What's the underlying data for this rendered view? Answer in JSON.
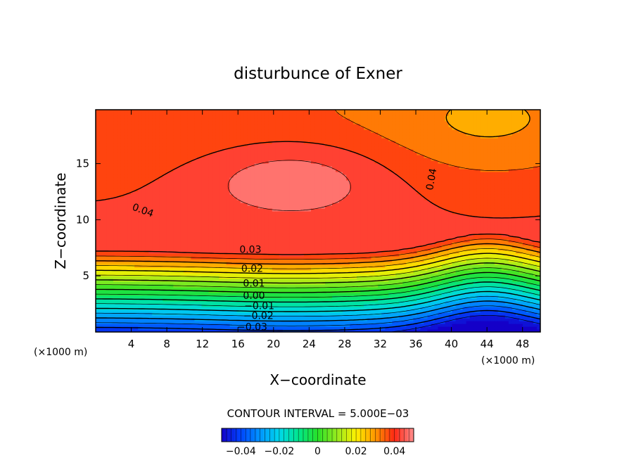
{
  "chart_data": {
    "type": "contour",
    "title": "disturbunce of Exner",
    "xlabel": "X−coordinate",
    "ylabel": "Z−coordinate",
    "x_unit_left": "(×1000 m)",
    "x_unit_right": "(×1000 m)",
    "xlim": [
      0,
      50
    ],
    "ylim": [
      0,
      19.8
    ],
    "x_ticks": [
      4,
      8,
      12,
      16,
      20,
      24,
      28,
      32,
      36,
      40,
      44,
      48
    ],
    "y_ticks": [
      5,
      10,
      15
    ],
    "contour_interval_text": "CONTOUR INTERVAL = 5.000E−03",
    "contour_interval": 0.005,
    "colorbar": {
      "range": [
        -0.05,
        0.05
      ],
      "ticks": [
        -0.04,
        -0.02,
        0,
        0.02,
        0.04
      ],
      "tick_labels": [
        "−0.04",
        "−0.02",
        "0",
        "0.02",
        "0.04"
      ]
    },
    "contour_labels": [
      {
        "text": "0.04",
        "x": 5.3,
        "z": 10.8
      },
      {
        "text": "0.04",
        "x": 37.8,
        "z": 13.6
      },
      {
        "text": "0.03",
        "x": 17.4,
        "z": 7.3
      },
      {
        "text": "0.02",
        "x": 17.6,
        "z": 5.6
      },
      {
        "text": "0.01",
        "x": 17.8,
        "z": 4.3
      },
      {
        "text": "0.00",
        "x": 17.8,
        "z": 3.2
      },
      {
        "text": "−0.01",
        "x": 18.4,
        "z": 2.3
      },
      {
        "text": "−0.02",
        "x": 18.3,
        "z": 1.4
      },
      {
        "text": "−0.03",
        "x": 17.6,
        "z": 0.4
      }
    ]
  }
}
